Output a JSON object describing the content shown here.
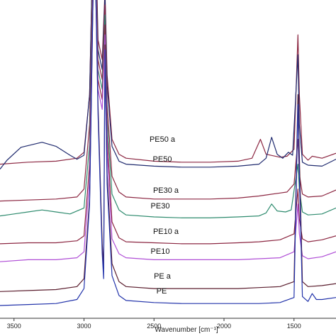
{
  "chart_data": {
    "type": "line",
    "title": "",
    "xlabel": "Wavenumber [cm⁻¹]",
    "ylabel": "",
    "xlim": [
      3600,
      1200
    ],
    "x_reversed": true,
    "grid": false,
    "y_ticks_shown": false,
    "xticks": [
      3500,
      3000,
      2500,
      2000,
      1500
    ],
    "xtick_labels": [
      "3500",
      "3000",
      "2500",
      "2000",
      "1500"
    ],
    "series": [
      {
        "name": "PE50 a",
        "color": "#8c2742",
        "points": [
          [
            3600,
            0.7
          ],
          [
            3400,
            0.72
          ],
          [
            3200,
            0.73
          ],
          [
            3050,
            0.76
          ],
          [
            3000,
            0.82
          ],
          [
            2960,
            1.4
          ],
          [
            2935,
            3.0
          ],
          [
            2919,
            3.2
          ],
          [
            2900,
            1.95
          ],
          [
            2870,
            1.75
          ],
          [
            2850,
            2.45
          ],
          [
            2835,
            1.6
          ],
          [
            2800,
            0.95
          ],
          [
            2750,
            0.8
          ],
          [
            2700,
            0.76
          ],
          [
            2500,
            0.73
          ],
          [
            2300,
            0.72
          ],
          [
            2100,
            0.72
          ],
          [
            1900,
            0.73
          ],
          [
            1800,
            0.76
          ],
          [
            1740,
            0.95
          ],
          [
            1700,
            0.8
          ],
          [
            1600,
            0.77
          ],
          [
            1550,
            0.78
          ],
          [
            1500,
            0.85
          ],
          [
            1472,
            2.0
          ],
          [
            1462,
            1.4
          ],
          [
            1440,
            0.8
          ],
          [
            1400,
            0.74
          ],
          [
            1370,
            0.78
          ],
          [
            1300,
            0.76
          ],
          [
            1200,
            0.81
          ]
        ]
      },
      {
        "name": "PE50",
        "color": "#1f2a6e",
        "points": [
          [
            3600,
            0.65
          ],
          [
            3550,
            0.74
          ],
          [
            3450,
            0.87
          ],
          [
            3300,
            0.92
          ],
          [
            3200,
            0.88
          ],
          [
            3100,
            0.79
          ],
          [
            3050,
            0.75
          ],
          [
            3000,
            0.79
          ],
          [
            2960,
            1.4
          ],
          [
            2935,
            3.0
          ],
          [
            2919,
            3.2
          ],
          [
            2900,
            1.85
          ],
          [
            2870,
            1.65
          ],
          [
            2850,
            2.4
          ],
          [
            2835,
            1.5
          ],
          [
            2800,
            0.88
          ],
          [
            2750,
            0.73
          ],
          [
            2700,
            0.7
          ],
          [
            2500,
            0.68
          ],
          [
            2300,
            0.67
          ],
          [
            2100,
            0.67
          ],
          [
            1900,
            0.68
          ],
          [
            1750,
            0.7
          ],
          [
            1700,
            0.76
          ],
          [
            1660,
            0.97
          ],
          [
            1620,
            0.8
          ],
          [
            1580,
            0.76
          ],
          [
            1540,
            0.82
          ],
          [
            1510,
            0.79
          ],
          [
            1472,
            1.8
          ],
          [
            1462,
            1.1
          ],
          [
            1440,
            0.72
          ],
          [
            1400,
            0.69
          ],
          [
            1300,
            0.68
          ],
          [
            1200,
            0.75
          ]
        ]
      },
      {
        "name": "PE30 a",
        "color": "#8c2742",
        "points": [
          [
            3600,
            0.33
          ],
          [
            3400,
            0.34
          ],
          [
            3200,
            0.35
          ],
          [
            3050,
            0.37
          ],
          [
            3000,
            0.45
          ],
          [
            2960,
            1.1
          ],
          [
            2935,
            2.9
          ],
          [
            2919,
            3.1
          ],
          [
            2900,
            1.75
          ],
          [
            2870,
            1.55
          ],
          [
            2850,
            2.3
          ],
          [
            2835,
            1.3
          ],
          [
            2800,
            0.58
          ],
          [
            2750,
            0.42
          ],
          [
            2700,
            0.37
          ],
          [
            2500,
            0.35
          ],
          [
            2300,
            0.35
          ],
          [
            2100,
            0.35
          ],
          [
            1900,
            0.36
          ],
          [
            1750,
            0.38
          ],
          [
            1600,
            0.41
          ],
          [
            1550,
            0.42
          ],
          [
            1500,
            0.5
          ],
          [
            1472,
            0.95
          ],
          [
            1462,
            0.6
          ],
          [
            1440,
            0.4
          ],
          [
            1400,
            0.37
          ],
          [
            1300,
            0.38
          ],
          [
            1200,
            0.44
          ]
        ]
      },
      {
        "name": "PE30",
        "color": "#2e8b6e",
        "points": [
          [
            3600,
            0.18
          ],
          [
            3500,
            0.2
          ],
          [
            3400,
            0.22
          ],
          [
            3300,
            0.24
          ],
          [
            3200,
            0.22
          ],
          [
            3100,
            0.2
          ],
          [
            3000,
            0.26
          ],
          [
            2960,
            0.9
          ],
          [
            2935,
            2.7
          ],
          [
            2919,
            2.95
          ],
          [
            2900,
            1.65
          ],
          [
            2870,
            1.45
          ],
          [
            2850,
            2.2
          ],
          [
            2835,
            1.15
          ],
          [
            2800,
            0.4
          ],
          [
            2750,
            0.24
          ],
          [
            2700,
            0.19
          ],
          [
            2500,
            0.17
          ],
          [
            2300,
            0.16
          ],
          [
            2100,
            0.16
          ],
          [
            1900,
            0.17
          ],
          [
            1750,
            0.18
          ],
          [
            1700,
            0.21
          ],
          [
            1660,
            0.3
          ],
          [
            1620,
            0.23
          ],
          [
            1560,
            0.22
          ],
          [
            1520,
            0.24
          ],
          [
            1472,
            0.7
          ],
          [
            1462,
            0.45
          ],
          [
            1440,
            0.22
          ],
          [
            1400,
            0.19
          ],
          [
            1300,
            0.2
          ],
          [
            1200,
            0.26
          ]
        ]
      },
      {
        "name": "PE10 a",
        "color": "#8c2742",
        "points": [
          [
            3600,
            -0.1
          ],
          [
            3400,
            -0.09
          ],
          [
            3200,
            -0.09
          ],
          [
            3050,
            -0.07
          ],
          [
            3000,
            -0.02
          ],
          [
            2960,
            0.7
          ],
          [
            2935,
            2.6
          ],
          [
            2919,
            2.85
          ],
          [
            2900,
            1.55
          ],
          [
            2870,
            1.35
          ],
          [
            2850,
            2.1
          ],
          [
            2835,
            1.0
          ],
          [
            2800,
            0.12
          ],
          [
            2750,
            -0.04
          ],
          [
            2700,
            -0.08
          ],
          [
            2500,
            -0.09
          ],
          [
            2300,
            -0.1
          ],
          [
            2100,
            -0.1
          ],
          [
            1900,
            -0.09
          ],
          [
            1750,
            -0.08
          ],
          [
            1600,
            -0.06
          ],
          [
            1500,
            0.0
          ],
          [
            1472,
            0.45
          ],
          [
            1462,
            0.15
          ],
          [
            1440,
            -0.05
          ],
          [
            1400,
            -0.08
          ],
          [
            1300,
            -0.06
          ],
          [
            1200,
            -0.02
          ]
        ]
      },
      {
        "name": "PE10",
        "color": "#b04fd6",
        "points": [
          [
            3600,
            -0.28
          ],
          [
            3400,
            -0.26
          ],
          [
            3200,
            -0.26
          ],
          [
            3050,
            -0.24
          ],
          [
            3000,
            -0.18
          ],
          [
            2960,
            0.55
          ],
          [
            2935,
            2.5
          ],
          [
            2919,
            2.75
          ],
          [
            2900,
            1.45
          ],
          [
            2870,
            1.25
          ],
          [
            2850,
            2.0
          ],
          [
            2835,
            0.85
          ],
          [
            2800,
            -0.05
          ],
          [
            2750,
            -0.2
          ],
          [
            2700,
            -0.24
          ],
          [
            2500,
            -0.26
          ],
          [
            2300,
            -0.26
          ],
          [
            2100,
            -0.26
          ],
          [
            1900,
            -0.26
          ],
          [
            1750,
            -0.25
          ],
          [
            1600,
            -0.24
          ],
          [
            1500,
            -0.18
          ],
          [
            1472,
            0.3
          ],
          [
            1462,
            0.0
          ],
          [
            1440,
            -0.22
          ],
          [
            1400,
            -0.25
          ],
          [
            1300,
            -0.23
          ],
          [
            1200,
            -0.18
          ]
        ]
      },
      {
        "name": "PE a",
        "color": "#5b1e2e",
        "points": [
          [
            3600,
            -0.58
          ],
          [
            3400,
            -0.57
          ],
          [
            3200,
            -0.56
          ],
          [
            3050,
            -0.53
          ],
          [
            3000,
            -0.45
          ],
          [
            2960,
            0.35
          ],
          [
            2935,
            2.4
          ],
          [
            2919,
            2.65
          ],
          [
            2900,
            1.3
          ],
          [
            2870,
            -0.1
          ],
          [
            2860,
            -0.35
          ],
          [
            2850,
            1.9
          ],
          [
            2835,
            0.6
          ],
          [
            2800,
            -0.3
          ],
          [
            2750,
            -0.48
          ],
          [
            2700,
            -0.53
          ],
          [
            2500,
            -0.55
          ],
          [
            2300,
            -0.55
          ],
          [
            2100,
            -0.55
          ],
          [
            1900,
            -0.55
          ],
          [
            1750,
            -0.54
          ],
          [
            1600,
            -0.53
          ],
          [
            1500,
            -0.48
          ],
          [
            1472,
            1.4
          ],
          [
            1462,
            0.8
          ],
          [
            1440,
            -0.48
          ],
          [
            1400,
            -0.53
          ],
          [
            1300,
            -0.52
          ],
          [
            1200,
            -0.5
          ]
        ]
      },
      {
        "name": "PE",
        "color": "#2233aa",
        "points": [
          [
            3600,
            -0.72
          ],
          [
            3400,
            -0.71
          ],
          [
            3200,
            -0.7
          ],
          [
            3050,
            -0.66
          ],
          [
            3000,
            -0.55
          ],
          [
            2960,
            0.3
          ],
          [
            2935,
            2.4
          ],
          [
            2919,
            2.65
          ],
          [
            2900,
            1.2
          ],
          [
            2870,
            -0.2
          ],
          [
            2860,
            -0.45
          ],
          [
            2850,
            1.85
          ],
          [
            2835,
            0.5
          ],
          [
            2800,
            -0.42
          ],
          [
            2750,
            -0.62
          ],
          [
            2700,
            -0.67
          ],
          [
            2500,
            -0.69
          ],
          [
            2300,
            -0.7
          ],
          [
            2100,
            -0.7
          ],
          [
            1900,
            -0.7
          ],
          [
            1750,
            -0.7
          ],
          [
            1600,
            -0.69
          ],
          [
            1500,
            -0.64
          ],
          [
            1472,
            1.3
          ],
          [
            1462,
            0.6
          ],
          [
            1440,
            -0.63
          ],
          [
            1400,
            -0.68
          ],
          [
            1370,
            -0.6
          ],
          [
            1340,
            -0.66
          ],
          [
            1300,
            -0.66
          ],
          [
            1200,
            -0.64
          ]
        ]
      }
    ]
  }
}
